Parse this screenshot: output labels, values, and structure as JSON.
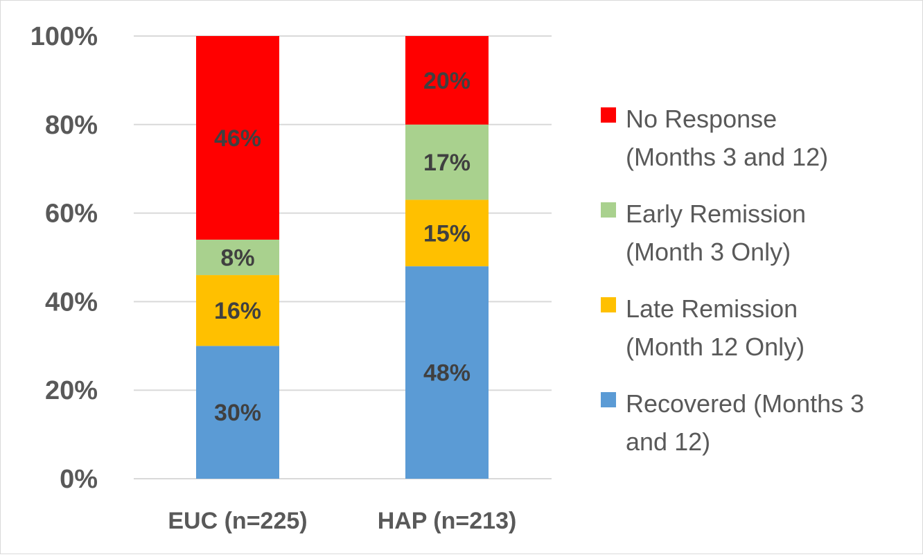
{
  "chart_data": {
    "type": "bar",
    "stacked": true,
    "normalized": true,
    "categories": [
      "EUC (n=225)",
      "HAP (n=213)"
    ],
    "series": [
      {
        "name": "Recovered (Months 3 and 12)",
        "legend_lines": [
          "Recovered (Months 3",
          "and 12)"
        ],
        "values": [
          30,
          48
        ],
        "labels": [
          "30%",
          "48%"
        ],
        "color": "#5b9bd5"
      },
      {
        "name": "Late Remission (Month 12 Only)",
        "legend_lines": [
          "Late Remission",
          "(Month 12 Only)"
        ],
        "values": [
          16,
          15
        ],
        "labels": [
          "16%",
          "15%"
        ],
        "color": "#ffc000"
      },
      {
        "name": "Early Remission (Month 3 Only)",
        "legend_lines": [
          "Early Remission",
          "(Month 3 Only)"
        ],
        "values": [
          8,
          17
        ],
        "labels": [
          "8%",
          "17%"
        ],
        "color": "#a9d18e"
      },
      {
        "name": "No Response (Months 3 and 12)",
        "legend_lines": [
          "No Response",
          "(Months 3 and 12)"
        ],
        "values": [
          46,
          20
        ],
        "labels": [
          "46%",
          "20%"
        ],
        "color": "#ff0000"
      }
    ],
    "y_ticks": [
      "0%",
      "20%",
      "40%",
      "60%",
      "80%",
      "100%"
    ],
    "ylim": [
      0,
      100
    ],
    "title": "",
    "xlabel": "",
    "ylabel": "",
    "grid": true,
    "legend_position": "right"
  }
}
